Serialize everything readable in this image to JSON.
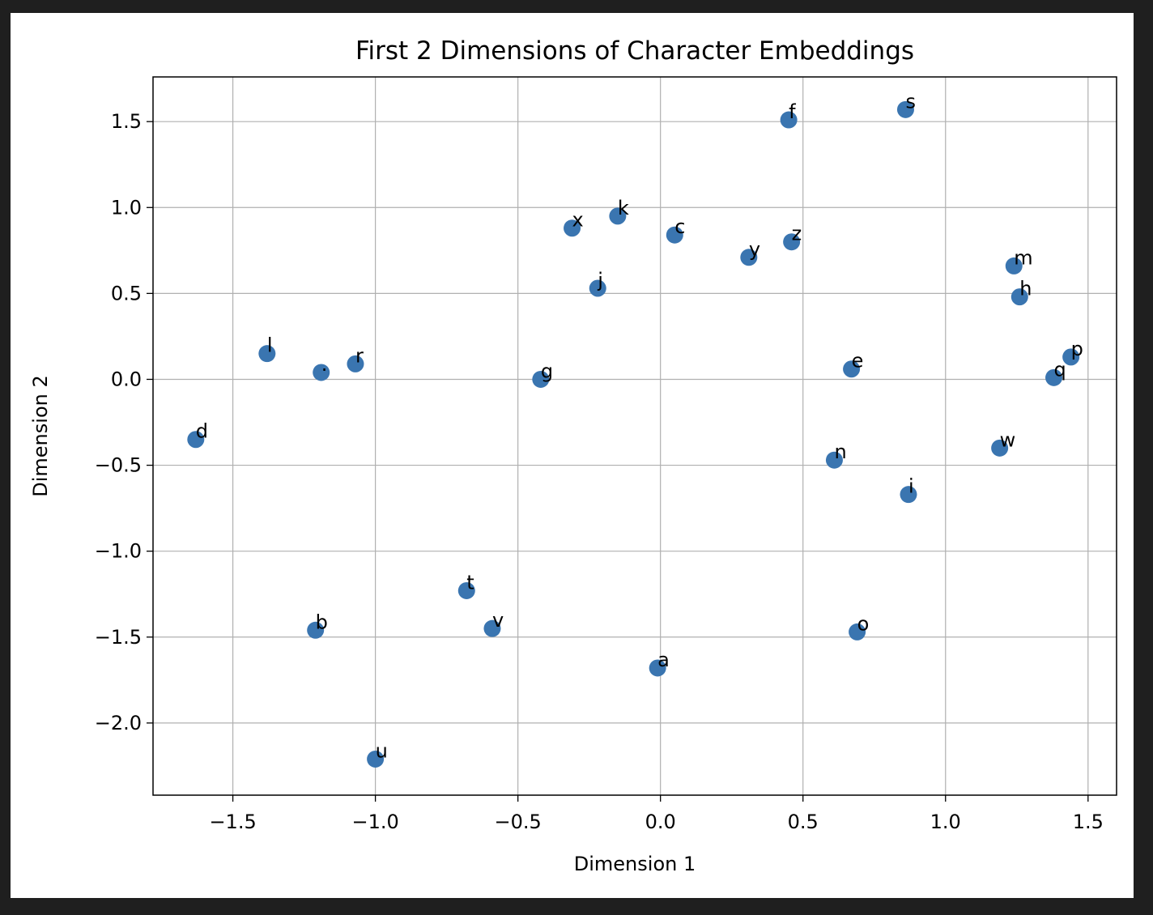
{
  "chart_data": {
    "type": "scatter",
    "title": "First 2 Dimensions of Character Embeddings",
    "xlabel": "Dimension 1",
    "ylabel": "Dimension 2",
    "xlim": [
      -1.78,
      1.6
    ],
    "ylim": [
      -2.42,
      1.76
    ],
    "grid": true,
    "marker_color": "#3a75b0",
    "xticks": [
      -1.5,
      -1.0,
      -0.5,
      0.0,
      0.5,
      1.0,
      1.5
    ],
    "xtick_labels": [
      "−1.5",
      "−1.0",
      "−0.5",
      "0.0",
      "0.5",
      "1.0",
      "1.5"
    ],
    "yticks": [
      1.5,
      1.0,
      0.5,
      0.0,
      -0.5,
      -1.0,
      -1.5,
      -2.0
    ],
    "ytick_labels": [
      "1.5",
      "1.0",
      "0.5",
      "0.0",
      "−0.5",
      "−1.0",
      "−1.5",
      "−2.0"
    ],
    "points": [
      {
        "label": "f",
        "x": 0.45,
        "y": 1.51
      },
      {
        "label": "s",
        "x": 0.86,
        "y": 1.57
      },
      {
        "label": "x",
        "x": -0.31,
        "y": 0.88
      },
      {
        "label": "k",
        "x": -0.15,
        "y": 0.95
      },
      {
        "label": "c",
        "x": 0.05,
        "y": 0.84
      },
      {
        "label": "y",
        "x": 0.31,
        "y": 0.71
      },
      {
        "label": "z",
        "x": 0.46,
        "y": 0.8
      },
      {
        "label": "j",
        "x": -0.22,
        "y": 0.53
      },
      {
        "label": "m",
        "x": 1.24,
        "y": 0.66
      },
      {
        "label": "h",
        "x": 1.26,
        "y": 0.48
      },
      {
        "label": "l",
        "x": -1.38,
        "y": 0.15
      },
      {
        "label": ".",
        "x": -1.19,
        "y": 0.04
      },
      {
        "label": "r",
        "x": -1.07,
        "y": 0.09
      },
      {
        "label": "g",
        "x": -0.42,
        "y": 0.0
      },
      {
        "label": "e",
        "x": 0.67,
        "y": 0.06
      },
      {
        "label": "p",
        "x": 1.44,
        "y": 0.13
      },
      {
        "label": "q",
        "x": 1.38,
        "y": 0.01
      },
      {
        "label": "d",
        "x": -1.63,
        "y": -0.35
      },
      {
        "label": "n",
        "x": 0.61,
        "y": -0.47
      },
      {
        "label": "w",
        "x": 1.19,
        "y": -0.4
      },
      {
        "label": "i",
        "x": 0.87,
        "y": -0.67
      },
      {
        "label": "t",
        "x": -0.68,
        "y": -1.23
      },
      {
        "label": "b",
        "x": -1.21,
        "y": -1.46
      },
      {
        "label": "v",
        "x": -0.59,
        "y": -1.45
      },
      {
        "label": "o",
        "x": 0.69,
        "y": -1.47
      },
      {
        "label": "a",
        "x": -0.01,
        "y": -1.68
      },
      {
        "label": "u",
        "x": -1.0,
        "y": -2.21
      }
    ]
  }
}
